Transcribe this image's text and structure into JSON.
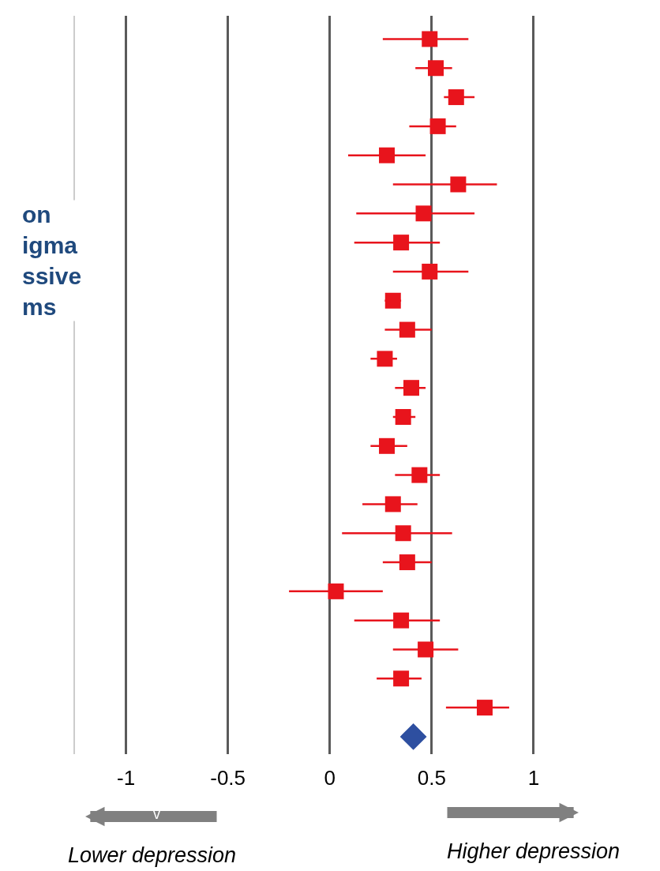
{
  "chart_data": {
    "type": "scatter",
    "orientation": "horizontal",
    "categories": [
      null,
      null,
      null,
      null,
      null,
      null,
      null,
      null,
      null,
      null,
      null,
      null,
      null,
      null,
      null,
      null,
      null,
      null,
      null,
      null,
      null,
      null,
      null,
      null,
      null
    ],
    "series": [
      {
        "color": "#e8141c",
        "marker": "square",
        "values": [
          0.49,
          0.52,
          0.62,
          0.53,
          0.28,
          0.63,
          0.46,
          0.35,
          0.49,
          0.31,
          0.38,
          0.27,
          0.4,
          0.36,
          0.28,
          0.44,
          0.31,
          0.36,
          0.38,
          0.03,
          0.35,
          0.47,
          0.35,
          0.76,
          null
        ],
        "errors": [
          [
            0.26,
            0.68
          ],
          [
            0.42,
            0.6
          ],
          [
            0.56,
            0.71
          ],
          [
            0.39,
            0.62
          ],
          [
            0.09,
            0.47
          ],
          [
            0.31,
            0.82
          ],
          [
            0.13,
            0.71
          ],
          [
            0.12,
            0.54
          ],
          [
            0.31,
            0.68
          ],
          [
            0.27,
            0.35
          ],
          [
            0.27,
            0.5
          ],
          [
            0.2,
            0.33
          ],
          [
            0.32,
            0.47
          ],
          [
            0.31,
            0.42
          ],
          [
            0.2,
            0.38
          ],
          [
            0.32,
            0.54
          ],
          [
            0.16,
            0.43
          ],
          [
            0.06,
            0.6
          ],
          [
            0.26,
            0.5
          ],
          [
            -0.2,
            0.26
          ],
          [
            0.12,
            0.54
          ],
          [
            0.31,
            0.63
          ],
          [
            0.23,
            0.45
          ],
          [
            0.57,
            0.88
          ],
          null
        ]
      },
      {
        "color": "#2e4fa0",
        "marker": "diamond",
        "values": [
          null,
          null,
          null,
          null,
          null,
          null,
          null,
          null,
          null,
          null,
          null,
          null,
          null,
          null,
          null,
          null,
          null,
          null,
          null,
          null,
          null,
          null,
          null,
          null,
          0.41
        ]
      }
    ],
    "xlim": [
      -1.25,
      1.62
    ],
    "xticks": [
      -1,
      -0.5,
      0,
      0.5,
      1
    ],
    "grid": "x",
    "tick_labels": "x",
    "annotations": [
      "on\nigma\nssive\nms",
      "Lower depression",
      "Higher depression",
      "v"
    ]
  }
}
